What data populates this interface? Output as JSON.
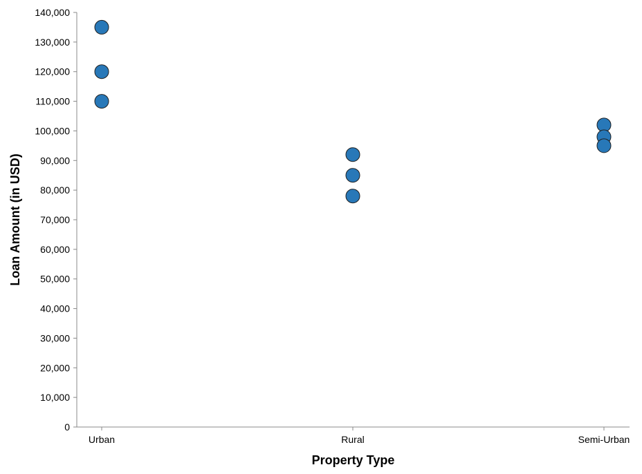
{
  "chart_data": {
    "type": "scatter",
    "title": "",
    "xlabel": "Property Type",
    "ylabel": "Loan Amount (in USD)",
    "categories": [
      "Urban",
      "Rural",
      "Semi-Urban"
    ],
    "ylim": [
      0,
      140000
    ],
    "y_ticks": [
      0,
      10000,
      20000,
      30000,
      40000,
      50000,
      60000,
      70000,
      80000,
      90000,
      100000,
      110000,
      120000,
      130000,
      140000
    ],
    "y_tick_labels": [
      "0",
      "10,000",
      "20,000",
      "30,000",
      "40,000",
      "50,000",
      "60,000",
      "70,000",
      "80,000",
      "90,000",
      "100,000",
      "110,000",
      "120,000",
      "130,000",
      "140,000"
    ],
    "grid": false,
    "point_color": "#2878b8",
    "points": [
      {
        "x": "Urban",
        "y": 135000
      },
      {
        "x": "Urban",
        "y": 120000
      },
      {
        "x": "Urban",
        "y": 110000
      },
      {
        "x": "Rural",
        "y": 92000
      },
      {
        "x": "Rural",
        "y": 85000
      },
      {
        "x": "Rural",
        "y": 78000
      },
      {
        "x": "Semi-Urban",
        "y": 102000
      },
      {
        "x": "Semi-Urban",
        "y": 98000
      },
      {
        "x": "Semi-Urban",
        "y": 95000
      }
    ]
  }
}
